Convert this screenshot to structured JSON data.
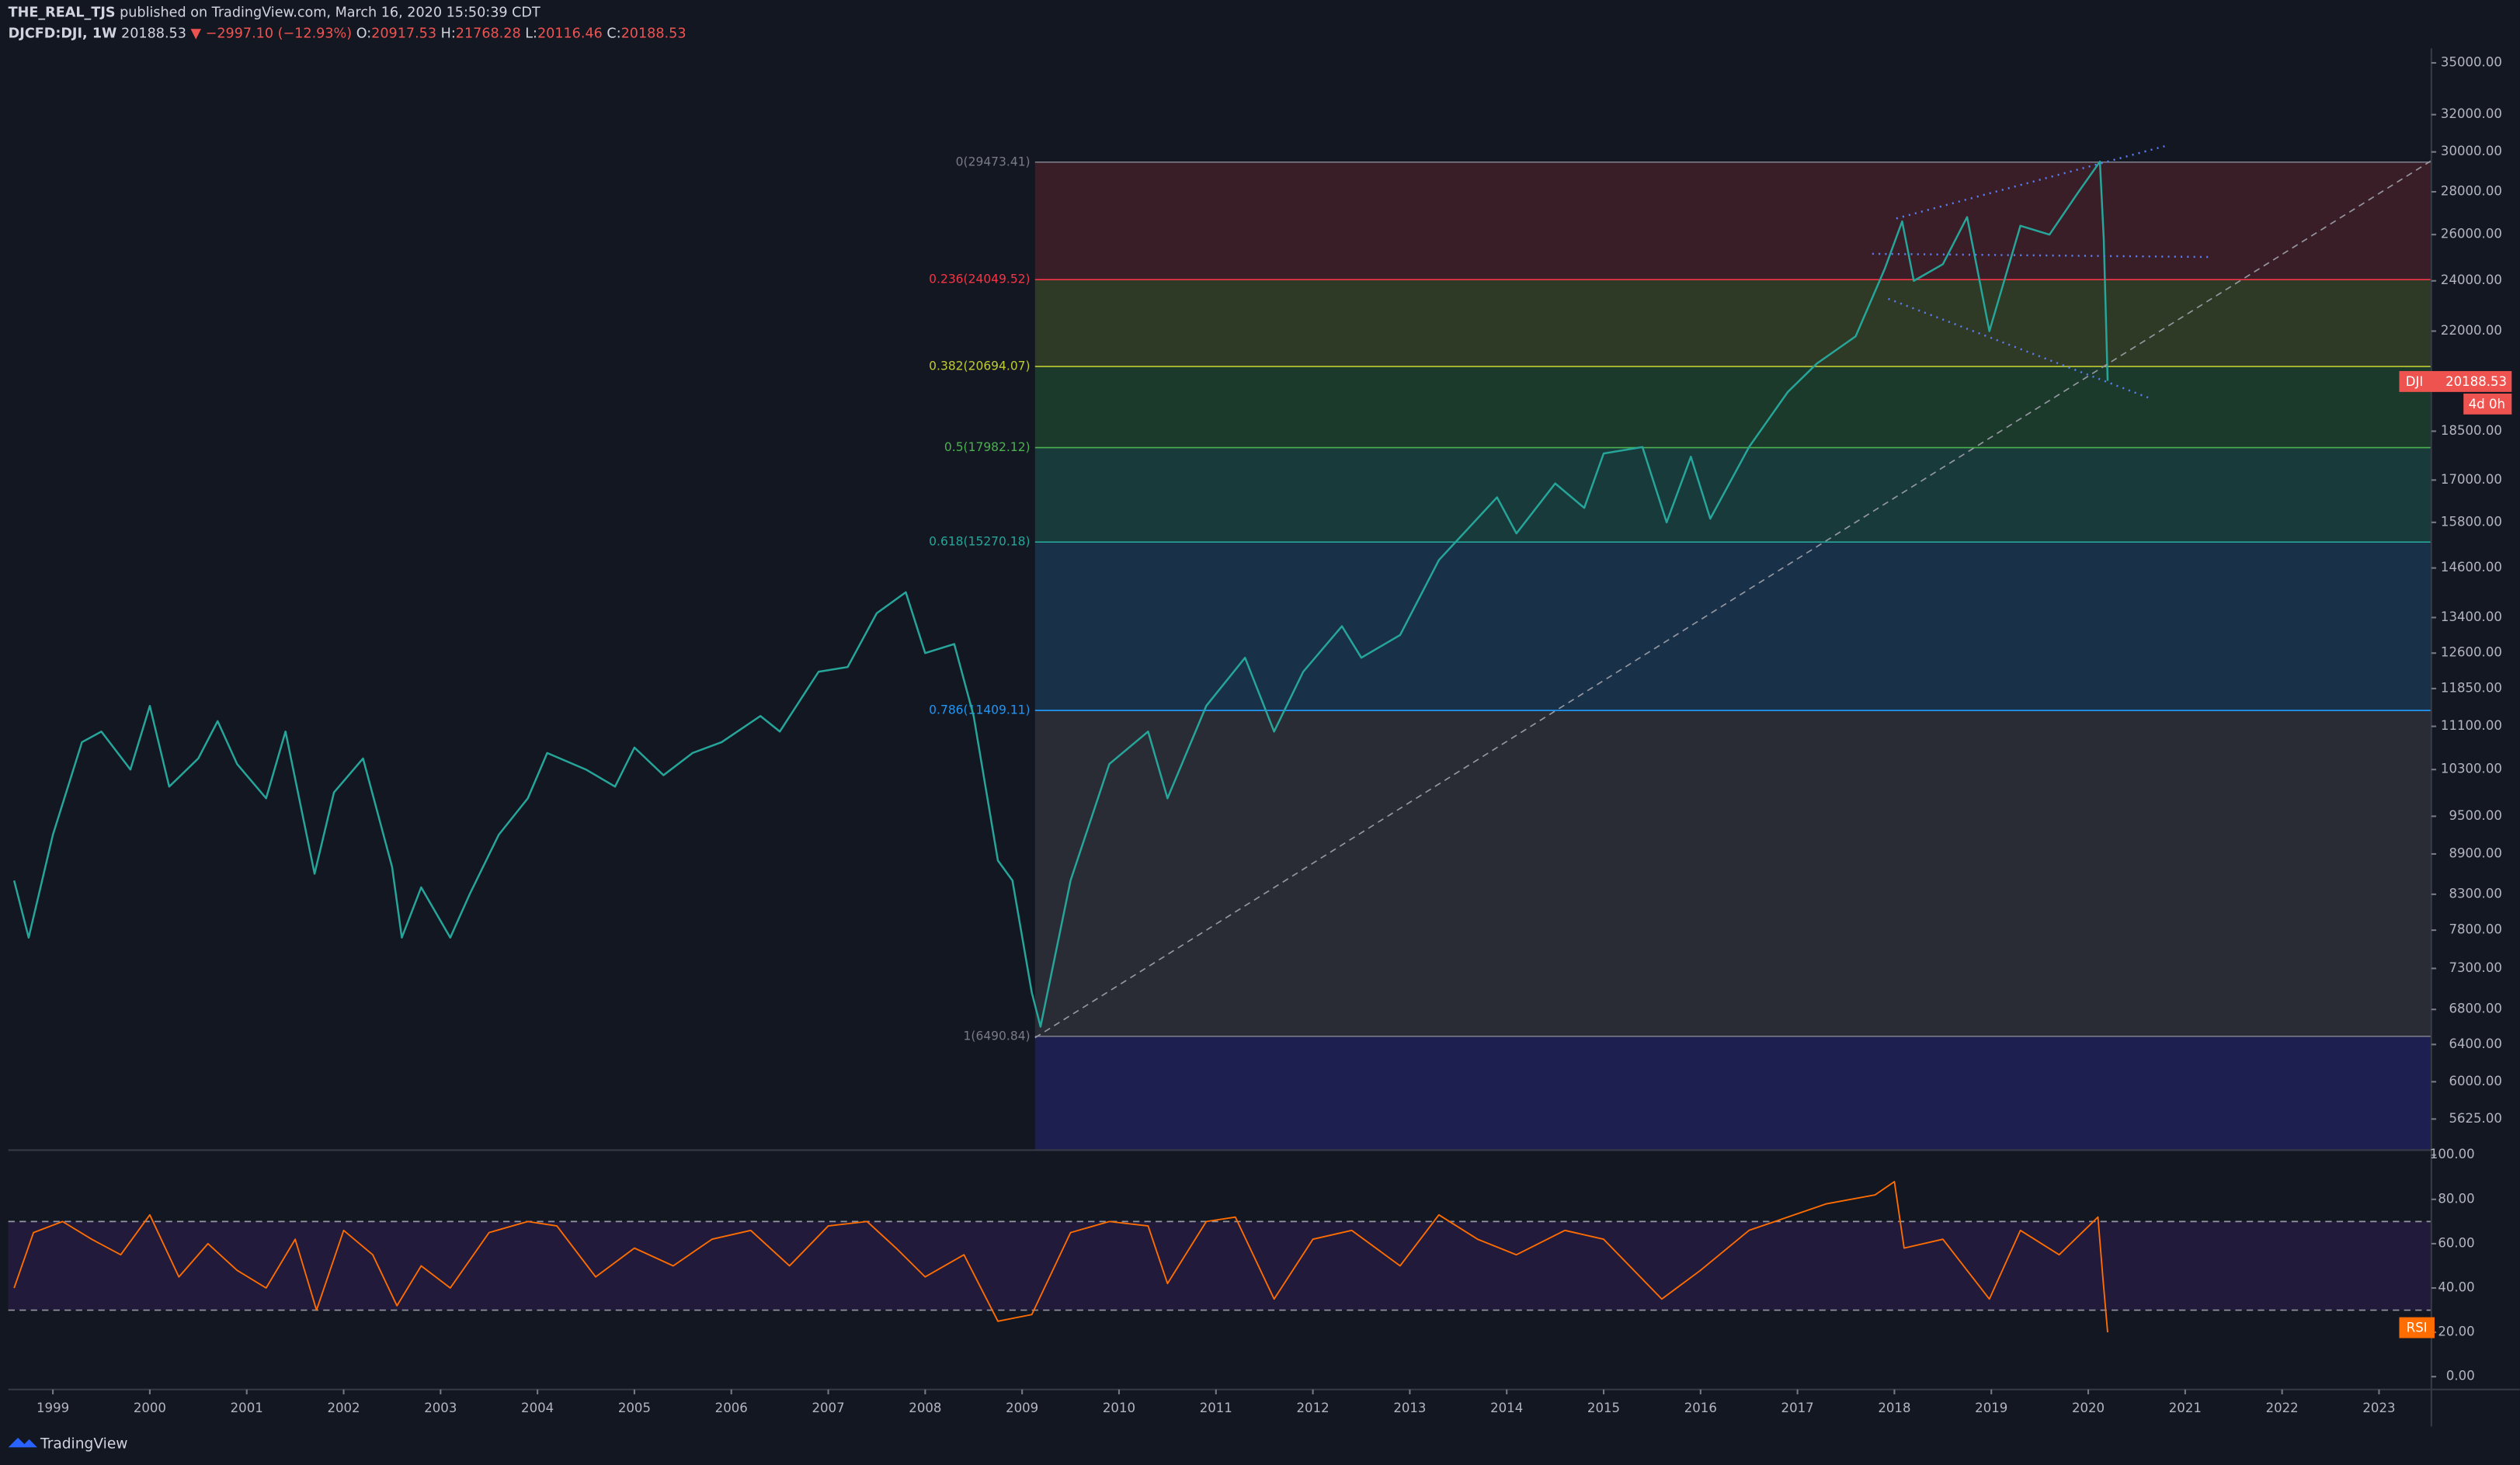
{
  "header": {
    "publisher": "THE_REAL_TJS",
    "published": "published on TradingView.com, March 16, 2020 15:50:39 CDT",
    "symbol": "DJCFD:DJI, 1W",
    "last": "20188.53",
    "arrow": "▼",
    "change": "−2997.10 (−12.93%)",
    "ohlc": [
      {
        "key": "O:",
        "val": "20917.53"
      },
      {
        "key": "H:",
        "val": "21768.28"
      },
      {
        "key": "L:",
        "val": "20116.46"
      },
      {
        "key": "C:",
        "val": "20188.53"
      }
    ]
  },
  "price_tag": {
    "symbol": "DJI",
    "value": "20188.53",
    "countdown": "4d 0h"
  },
  "rsi_tag": "RSI",
  "footer": "TradingView",
  "chart_data": {
    "type": "line",
    "log_scale": true,
    "color": "#26a69a",
    "xlim": [
      1998.54,
      2023.54
    ],
    "xticks": [
      1999,
      2000,
      2001,
      2002,
      2003,
      2004,
      2005,
      2006,
      2007,
      2008,
      2009,
      2010,
      2011,
      2012,
      2013,
      2014,
      2015,
      2016,
      2017,
      2018,
      2019,
      2020,
      2021,
      2022,
      2023
    ],
    "ylim": [
      5330,
      35900
    ],
    "yticks": [
      {
        "value": 35000,
        "label": "35000.00"
      },
      {
        "value": 32000,
        "label": "32000.00"
      },
      {
        "value": 30000,
        "label": "30000.00"
      },
      {
        "value": 28000,
        "label": "28000.00"
      },
      {
        "value": 26000,
        "label": "26000.00"
      },
      {
        "value": 24000,
        "label": "24000.00"
      },
      {
        "value": 22000,
        "label": "22000.00"
      },
      {
        "value": 18500,
        "label": "18500.00"
      },
      {
        "value": 17000,
        "label": "17000.00"
      },
      {
        "value": 15800,
        "label": "15800.00"
      },
      {
        "value": 14600,
        "label": "14600.00"
      },
      {
        "value": 13400,
        "label": "13400.00"
      },
      {
        "value": 12600,
        "label": "12600.00"
      },
      {
        "value": 11850,
        "label": "11850.00"
      },
      {
        "value": 11100,
        "label": "11100.00"
      },
      {
        "value": 10300,
        "label": "10300.00"
      },
      {
        "value": 9500,
        "label": "9500.00"
      },
      {
        "value": 8900,
        "label": "8900.00"
      },
      {
        "value": 8300,
        "label": "8300.00"
      },
      {
        "value": 7800,
        "label": "7800.00"
      },
      {
        "value": 7300,
        "label": "7300.00"
      },
      {
        "value": 6800,
        "label": "6800.00"
      },
      {
        "value": 6400,
        "label": "6400.00"
      },
      {
        "value": 6000,
        "label": "6000.00"
      },
      {
        "value": 5625,
        "label": "5625.00"
      }
    ],
    "series": [
      {
        "name": "DJI",
        "x": [
          1998.6,
          1998.75,
          1999.0,
          1999.3,
          1999.5,
          1999.8,
          2000.0,
          2000.2,
          2000.5,
          2000.7,
          2000.9,
          2001.2,
          2001.4,
          2001.7,
          2001.9,
          2002.2,
          2002.5,
          2002.6,
          2002.8,
          2003.1,
          2003.3,
          2003.6,
          2003.9,
          2004.1,
          2004.5,
          2004.8,
          2005.0,
          2005.3,
          2005.6,
          2005.9,
          2006.3,
          2006.5,
          2006.9,
          2007.2,
          2007.5,
          2007.8,
          2008.0,
          2008.3,
          2008.5,
          2008.75,
          2008.9,
          2009.1,
          2009.19,
          2009.5,
          2009.9,
          2010.3,
          2010.5,
          2010.9,
          2011.3,
          2011.6,
          2011.9,
          2012.3,
          2012.5,
          2012.9,
          2013.3,
          2013.9,
          2014.1,
          2014.5,
          2014.8,
          2015.0,
          2015.4,
          2015.65,
          2015.9,
          2016.1,
          2016.5,
          2016.9,
          2017.2,
          2017.6,
          2017.9,
          2018.08,
          2018.2,
          2018.5,
          2018.75,
          2018.98,
          2019.3,
          2019.6,
          2019.9,
          2020.12,
          2020.16,
          2020.2
        ],
        "values": [
          8500,
          7700,
          9200,
          10800,
          11000,
          10300,
          11500,
          10000,
          10500,
          11200,
          10400,
          9800,
          11000,
          8600,
          9900,
          10500,
          8700,
          7700,
          8400,
          7700,
          8300,
          9200,
          9800,
          10600,
          10300,
          10000,
          10700,
          10200,
          10600,
          10800,
          11300,
          11000,
          12200,
          12300,
          13500,
          14000,
          12600,
          12800,
          11300,
          8800,
          8500,
          7000,
          6600,
          8500,
          10400,
          11000,
          9800,
          11500,
          12500,
          11000,
          12200,
          13200,
          12500,
          13000,
          14800,
          16500,
          15500,
          16900,
          16200,
          17800,
          18000,
          15800,
          17700,
          15900,
          18000,
          19800,
          20800,
          21800,
          24500,
          26600,
          24000,
          24700,
          26800,
          22000,
          26400,
          26000,
          28000,
          29500,
          25800,
          20188.53
        ]
      }
    ],
    "fib_levels": [
      {
        "label": "0(29473.41)",
        "value": 29473.41,
        "color": "#787b86",
        "fill": "#3a1e27"
      },
      {
        "label": "0.236(24049.52)",
        "value": 24049.52,
        "color": "#f23645",
        "fill": "#2e3a25"
      },
      {
        "label": "0.382(20694.07)",
        "value": 20694.07,
        "color": "#c0ca33",
        "fill": "#1c3a2b"
      },
      {
        "label": "0.5(17982.12)",
        "value": 17982.12,
        "color": "#4caf50",
        "fill": "#193a3a"
      },
      {
        "label": "0.618(15270.18)",
        "value": 15270.18,
        "color": "#26a69a",
        "fill": "#183048"
      },
      {
        "label": "0.786(11409.11)",
        "value": 11409.11,
        "color": "#2196f3",
        "fill": "#2a2c35"
      },
      {
        "label": "1(6490.84)",
        "value": 6490.84,
        "color": "#787b86",
        "fill": "#1c1f4f"
      }
    ],
    "rsi": {
      "color": "#ff6d00",
      "ylim": [
        -5.8,
        102.2
      ],
      "yticks": [
        {
          "value": 100,
          "label": "100.00"
        },
        {
          "value": 80,
          "label": "80.00"
        },
        {
          "value": 60,
          "label": "60.00"
        },
        {
          "value": 40,
          "label": "40.00"
        },
        {
          "value": 20,
          "label": "20.00"
        },
        {
          "value": 0,
          "label": "0.00"
        }
      ],
      "bands": [
        70,
        30
      ],
      "x": [
        1998.6,
        1998.8,
        1999.1,
        1999.4,
        1999.7,
        2000.0,
        2000.3,
        2000.6,
        2000.9,
        2001.2,
        2001.5,
        2001.72,
        2002.0,
        2002.3,
        2002.55,
        2002.8,
        2003.1,
        2003.5,
        2003.9,
        2004.2,
        2004.6,
        2005.0,
        2005.4,
        2005.8,
        2006.2,
        2006.6,
        2007.0,
        2007.4,
        2007.7,
        2008.0,
        2008.4,
        2008.75,
        2009.1,
        2009.5,
        2009.9,
        2010.3,
        2010.5,
        2010.9,
        2011.2,
        2011.6,
        2012.0,
        2012.4,
        2012.9,
        2013.3,
        2013.7,
        2014.1,
        2014.6,
        2015.0,
        2015.6,
        2016.0,
        2016.5,
        2016.9,
        2017.3,
        2017.8,
        2018.0,
        2018.1,
        2018.5,
        2018.98,
        2019.3,
        2019.7,
        2020.1,
        2020.15,
        2020.2
      ],
      "values": [
        40,
        65,
        70,
        62,
        55,
        73,
        45,
        60,
        48,
        40,
        62,
        30,
        66,
        55,
        32,
        50,
        40,
        65,
        70,
        68,
        45,
        58,
        50,
        62,
        66,
        50,
        68,
        70,
        58,
        45,
        55,
        25,
        28,
        65,
        70,
        68,
        42,
        70,
        72,
        35,
        62,
        66,
        50,
        73,
        62,
        55,
        66,
        62,
        35,
        48,
        66,
        72,
        78,
        82,
        88,
        58,
        62,
        35,
        66,
        55,
        72,
        45,
        20
      ]
    }
  }
}
